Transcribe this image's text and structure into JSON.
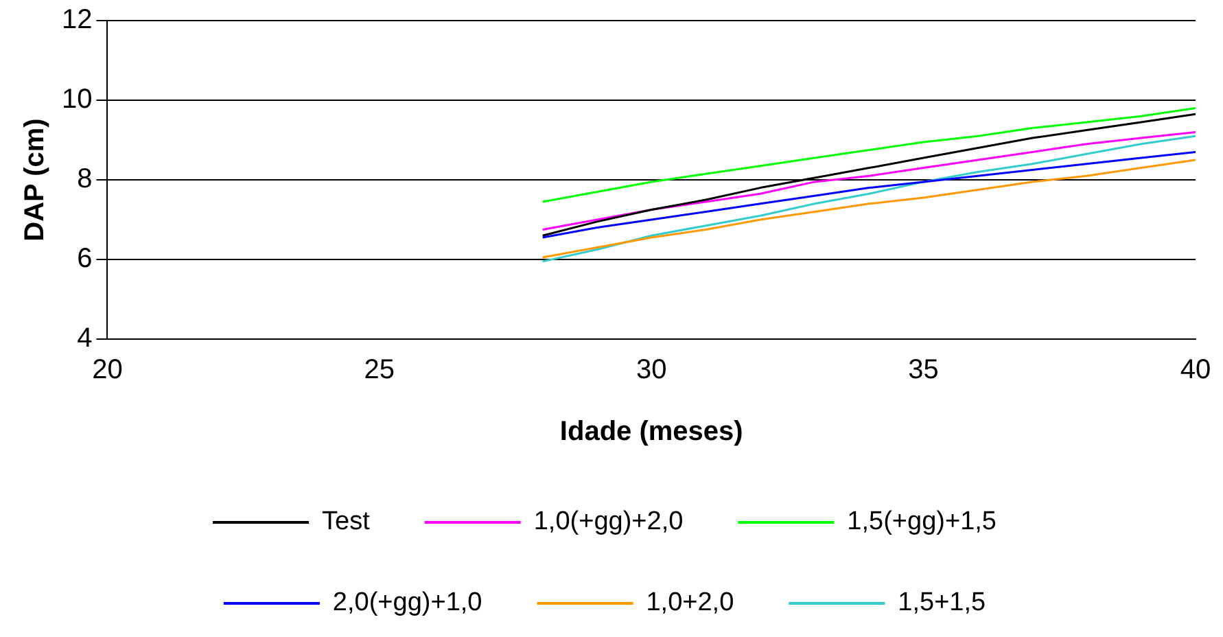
{
  "chart_data": {
    "type": "line",
    "xlabel": "Idade (meses)",
    "ylabel": "DAP (cm)",
    "x": [
      28,
      29,
      30,
      31,
      32,
      33,
      34,
      35,
      36,
      37,
      38,
      39,
      40
    ],
    "xlim": [
      20,
      40
    ],
    "xticks": [
      20,
      25,
      30,
      35,
      40
    ],
    "ylim": [
      4,
      12
    ],
    "yticks": [
      4,
      6,
      8,
      10,
      12
    ],
    "grid": "y",
    "legend": "bottom",
    "marker": "none",
    "line_style": "solid",
    "series": [
      {
        "name": "Test",
        "color": "#000000",
        "values": [
          6.6,
          6.95,
          7.25,
          7.5,
          7.8,
          8.05,
          8.3,
          8.55,
          8.8,
          9.05,
          9.25,
          9.45,
          9.65
        ]
      },
      {
        "name": "1,0(+gg)+2,0",
        "color": "#ff00ff",
        "values": [
          6.75,
          7.0,
          7.25,
          7.45,
          7.65,
          7.95,
          8.1,
          8.3,
          8.5,
          8.7,
          8.9,
          9.05,
          9.2
        ]
      },
      {
        "name": "1,5(+gg)+1,5",
        "color": "#00ff00",
        "values": [
          7.45,
          7.7,
          7.95,
          8.15,
          8.35,
          8.55,
          8.75,
          8.95,
          9.1,
          9.3,
          9.45,
          9.6,
          9.8
        ]
      },
      {
        "name": "2,0(+gg)+1,0",
        "color": "#0000ff",
        "values": [
          6.55,
          6.8,
          7.0,
          7.2,
          7.4,
          7.6,
          7.8,
          7.95,
          8.1,
          8.25,
          8.4,
          8.55,
          8.7
        ]
      },
      {
        "name": "1,0+2,0",
        "color": "#ff9900",
        "values": [
          6.05,
          6.3,
          6.55,
          6.75,
          7.0,
          7.2,
          7.4,
          7.55,
          7.75,
          7.95,
          8.1,
          8.3,
          8.5
        ]
      },
      {
        "name": "1,5+1,5",
        "color": "#33cccc",
        "values": [
          5.95,
          6.25,
          6.6,
          6.85,
          7.1,
          7.4,
          7.65,
          7.95,
          8.2,
          8.4,
          8.65,
          8.9,
          9.1
        ]
      }
    ]
  }
}
